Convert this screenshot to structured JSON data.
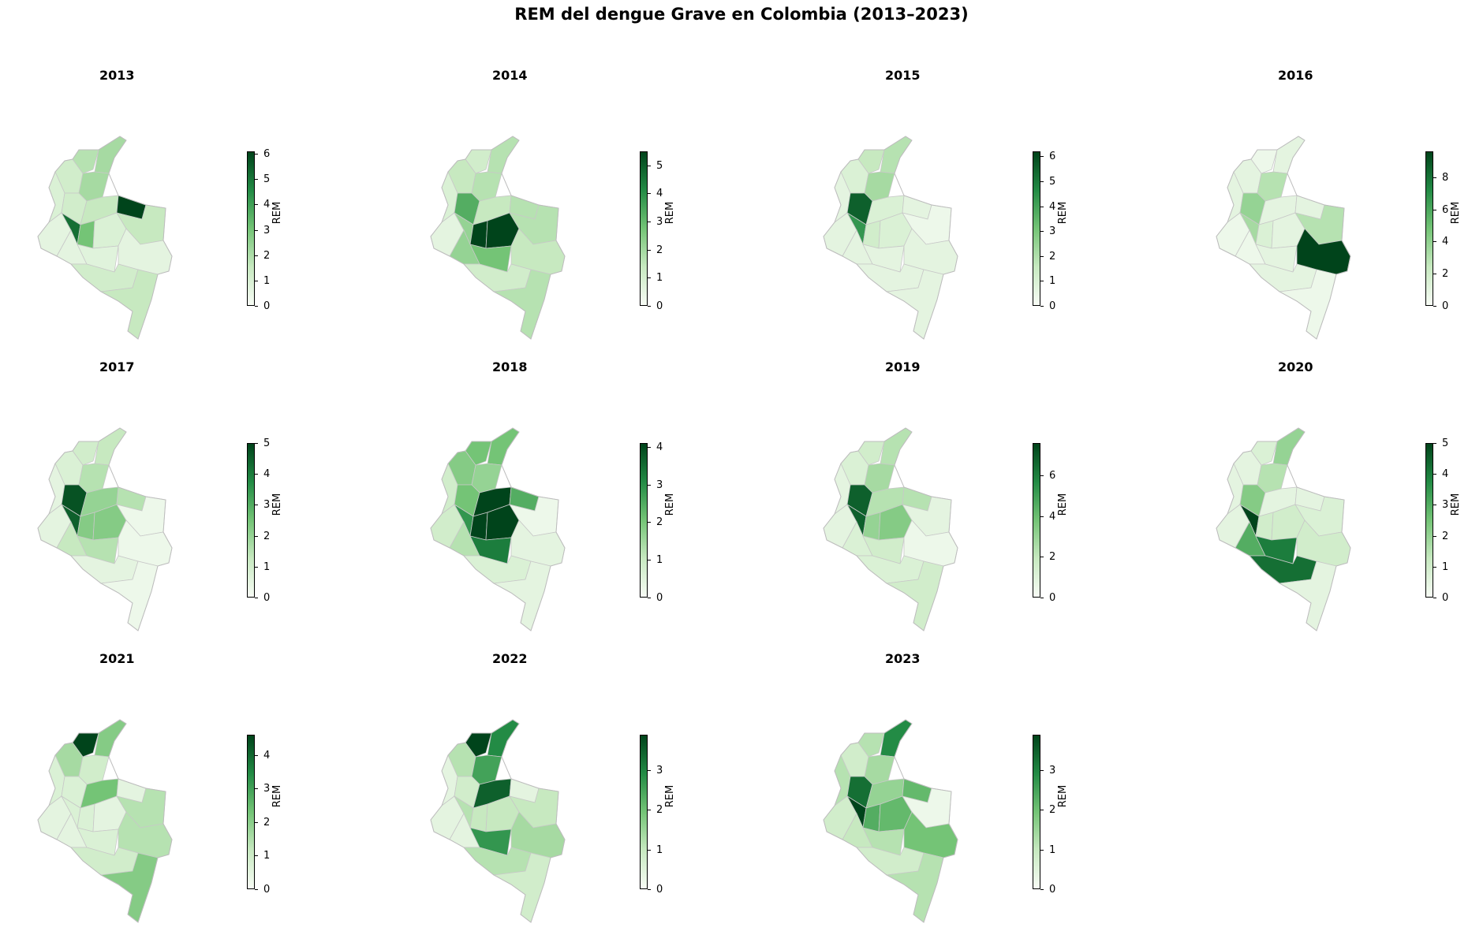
{
  "figure": {
    "title": "REM del dengue Grave en Colombia (2013–2023)"
  },
  "colorbar_label": "REM",
  "colormap": {
    "name": "Greens",
    "low": "#f7fcf5",
    "mid": "#74c476",
    "high": "#00441b"
  },
  "chart_data": [
    {
      "type": "choropleth",
      "title": "2013",
      "colorbar": {
        "label": "REM",
        "ticks": [
          "0",
          "1",
          "2",
          "3",
          "4",
          "5",
          "6"
        ],
        "max": 6.1
      }
    },
    {
      "type": "choropleth",
      "title": "2014",
      "colorbar": {
        "label": "REM",
        "ticks": [
          "0",
          "1",
          "2",
          "3",
          "4",
          "5"
        ],
        "max": 5.5
      }
    },
    {
      "type": "choropleth",
      "title": "2015",
      "colorbar": {
        "label": "REM",
        "ticks": [
          "0",
          "1",
          "2",
          "3",
          "4",
          "5",
          "6"
        ],
        "max": 6.2
      }
    },
    {
      "type": "choropleth",
      "title": "2016",
      "colorbar": {
        "label": "REM",
        "ticks": [
          "0",
          "2",
          "4",
          "6",
          "8"
        ],
        "max": 9.6
      }
    },
    {
      "type": "choropleth",
      "title": "2017",
      "colorbar": {
        "label": "REM",
        "ticks": [
          "0",
          "1",
          "2",
          "3",
          "4",
          "5"
        ],
        "max": 5.0
      }
    },
    {
      "type": "choropleth",
      "title": "2018",
      "colorbar": {
        "label": "REM",
        "ticks": [
          "0",
          "1",
          "2",
          "3",
          "4"
        ],
        "max": 4.1
      }
    },
    {
      "type": "choropleth",
      "title": "2019",
      "colorbar": {
        "label": "REM",
        "ticks": [
          "0",
          "2",
          "4",
          "6"
        ],
        "max": 7.6
      }
    },
    {
      "type": "choropleth",
      "title": "2020",
      "colorbar": {
        "label": "REM",
        "ticks": [
          "0",
          "1",
          "2",
          "3",
          "4",
          "5"
        ],
        "max": 5.0
      }
    },
    {
      "type": "choropleth",
      "title": "2021",
      "colorbar": {
        "label": "REM",
        "ticks": [
          "0",
          "1",
          "2",
          "3",
          "4"
        ],
        "max": 4.6
      }
    },
    {
      "type": "choropleth",
      "title": "2022",
      "colorbar": {
        "label": "REM",
        "ticks": [
          "0",
          "1",
          "2",
          "3"
        ],
        "max": 3.9
      }
    },
    {
      "type": "choropleth",
      "title": "2023",
      "colorbar": {
        "label": "REM",
        "ticks": [
          "0",
          "1",
          "2",
          "3"
        ],
        "max": 3.9
      }
    }
  ]
}
